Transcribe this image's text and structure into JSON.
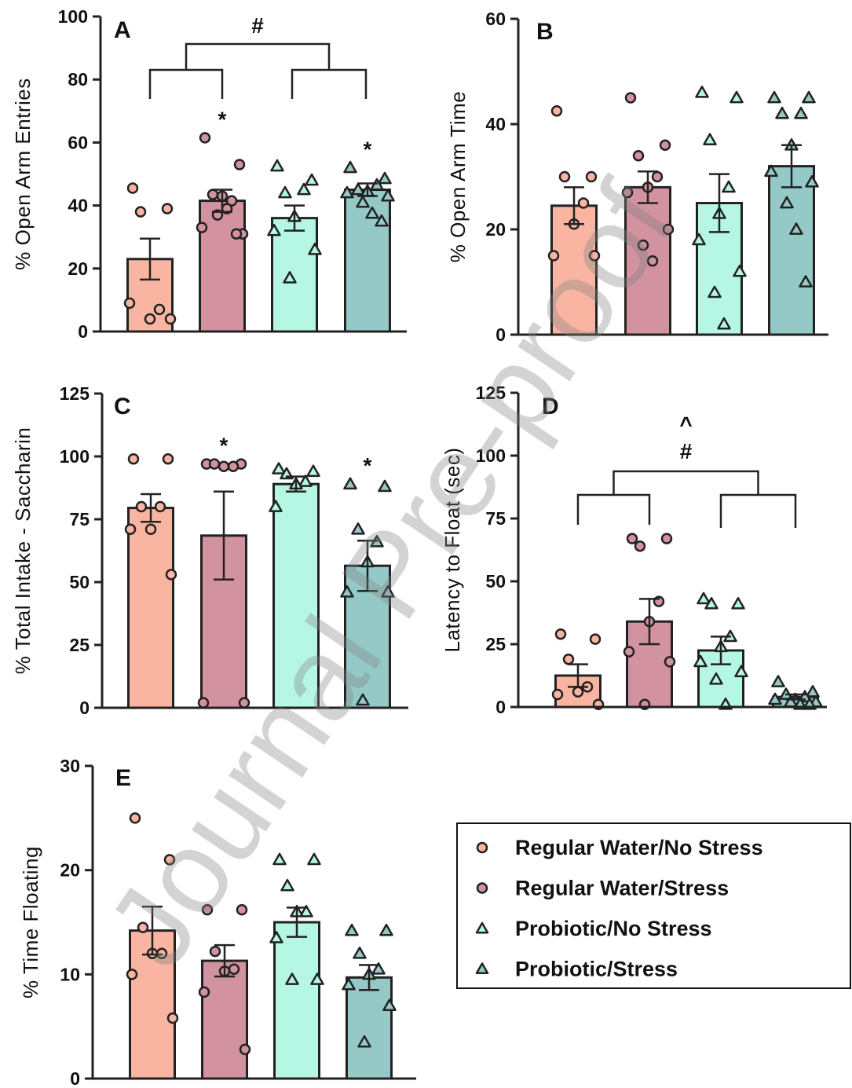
{
  "groups": [
    {
      "name": "Regular Water/No Stress",
      "color": "#f9b4a2",
      "marker": "circle"
    },
    {
      "name": "Regular Water/Stress",
      "color": "#d3929f",
      "marker": "circle"
    },
    {
      "name": "Probiotic/No Stress",
      "color": "#b5f7e3",
      "marker": "triangle"
    },
    {
      "name": "Probiotic/Stress",
      "color": "#95c9c7",
      "marker": "triangle"
    }
  ],
  "watermark": "Journal Pre-proof",
  "chart_data": [
    {
      "type": "bar",
      "panel": "A",
      "ylabel": "% Open Arm Entries",
      "ylim": [
        0,
        100
      ],
      "yticks": [
        0,
        20,
        40,
        60,
        80,
        100
      ],
      "means": [
        23,
        41.5,
        36,
        45
      ],
      "sem": [
        6.5,
        3.5,
        4,
        2
      ],
      "points": [
        [
          45.5,
          39,
          38,
          7,
          4,
          9,
          4
        ],
        [
          61.5,
          53,
          43.5,
          41.5,
          43,
          33,
          31,
          37,
          39,
          31
        ],
        [
          52.5,
          48,
          44,
          45,
          36.5,
          32,
          26,
          17
        ],
        [
          52,
          48.5,
          45,
          46.5,
          44.5,
          44,
          43,
          41,
          37.5,
          35
        ]
      ],
      "stars": [
        "",
        "*",
        "",
        "*"
      ],
      "brackets": [
        {
          "label": "#"
        }
      ]
    },
    {
      "type": "bar",
      "panel": "B",
      "ylabel": "% Open Arm Time",
      "ylim": [
        0,
        60
      ],
      "yticks": [
        0,
        20,
        40,
        60
      ],
      "means": [
        24.5,
        28,
        25,
        32
      ],
      "sem": [
        3.5,
        3,
        5.5,
        4
      ],
      "points": [
        [
          42.5,
          30,
          30,
          25,
          21,
          15,
          15
        ],
        [
          45,
          36,
          34,
          30,
          28,
          27,
          20,
          17,
          14
        ],
        [
          46,
          45,
          37,
          28,
          23,
          18,
          12,
          8,
          2
        ],
        [
          45,
          45,
          42,
          42,
          36,
          31,
          29,
          25,
          20,
          10
        ]
      ],
      "stars": [
        "",
        "",
        "",
        ""
      ],
      "brackets": []
    },
    {
      "type": "bar",
      "panel": "C",
      "ylabel": "% Total Intake - Saccharin",
      "ylim": [
        0,
        125
      ],
      "yticks": [
        0,
        25,
        50,
        75,
        100,
        125
      ],
      "means": [
        79.5,
        68.5,
        89,
        56.5
      ],
      "sem": [
        5.5,
        17.5,
        3,
        10
      ],
      "points": [
        [
          99,
          99,
          80,
          80,
          71,
          71,
          53
        ],
        [
          97,
          97,
          97,
          96,
          96,
          2,
          2
        ],
        [
          95,
          94,
          93,
          90,
          89,
          80
        ],
        [
          89,
          88,
          71,
          66,
          58,
          46,
          46,
          3
        ]
      ],
      "stars": [
        "",
        "*",
        "",
        "*"
      ],
      "brackets": []
    },
    {
      "type": "bar",
      "panel": "D",
      "ylabel": "Latency to Float (sec)",
      "ylim": [
        0,
        125
      ],
      "yticks": [
        0,
        25,
        50,
        75,
        100,
        125
      ],
      "means": [
        12.5,
        34,
        22.5,
        4
      ],
      "sem": [
        4.5,
        9,
        5.5,
        1
      ],
      "points": [
        [
          29,
          27,
          19,
          8,
          6,
          5,
          1
        ],
        [
          67,
          67,
          64,
          42,
          34,
          22,
          18,
          1
        ],
        [
          43,
          41,
          41,
          28,
          24,
          18,
          14,
          11,
          1
        ],
        [
          10,
          6,
          5,
          4,
          3,
          3,
          2,
          2,
          1,
          1
        ]
      ],
      "stars": [
        "",
        "",
        "",
        ""
      ],
      "brackets": [
        {
          "label": "^"
        },
        {
          "label": "#"
        }
      ]
    },
    {
      "type": "bar",
      "panel": "E",
      "ylabel": "% Time Floating",
      "ylim": [
        0,
        30
      ],
      "yticks": [
        0,
        10,
        20,
        30
      ],
      "means": [
        14.2,
        11.3,
        15,
        9.7
      ],
      "sem": [
        2.3,
        1.5,
        1.4,
        1.2
      ],
      "points": [
        [
          25,
          21,
          14.5,
          12,
          12,
          10,
          5.8
        ],
        [
          16.2,
          16.2,
          12.2,
          10.5,
          10.3,
          8.3,
          2.8
        ],
        [
          21,
          21,
          18.5,
          16,
          16,
          13.5,
          9.5,
          9.5
        ],
        [
          14.2,
          14.2,
          12,
          10.5,
          10,
          9,
          7,
          3.5
        ]
      ],
      "stars": [
        "",
        "",
        "",
        ""
      ],
      "brackets": []
    }
  ]
}
